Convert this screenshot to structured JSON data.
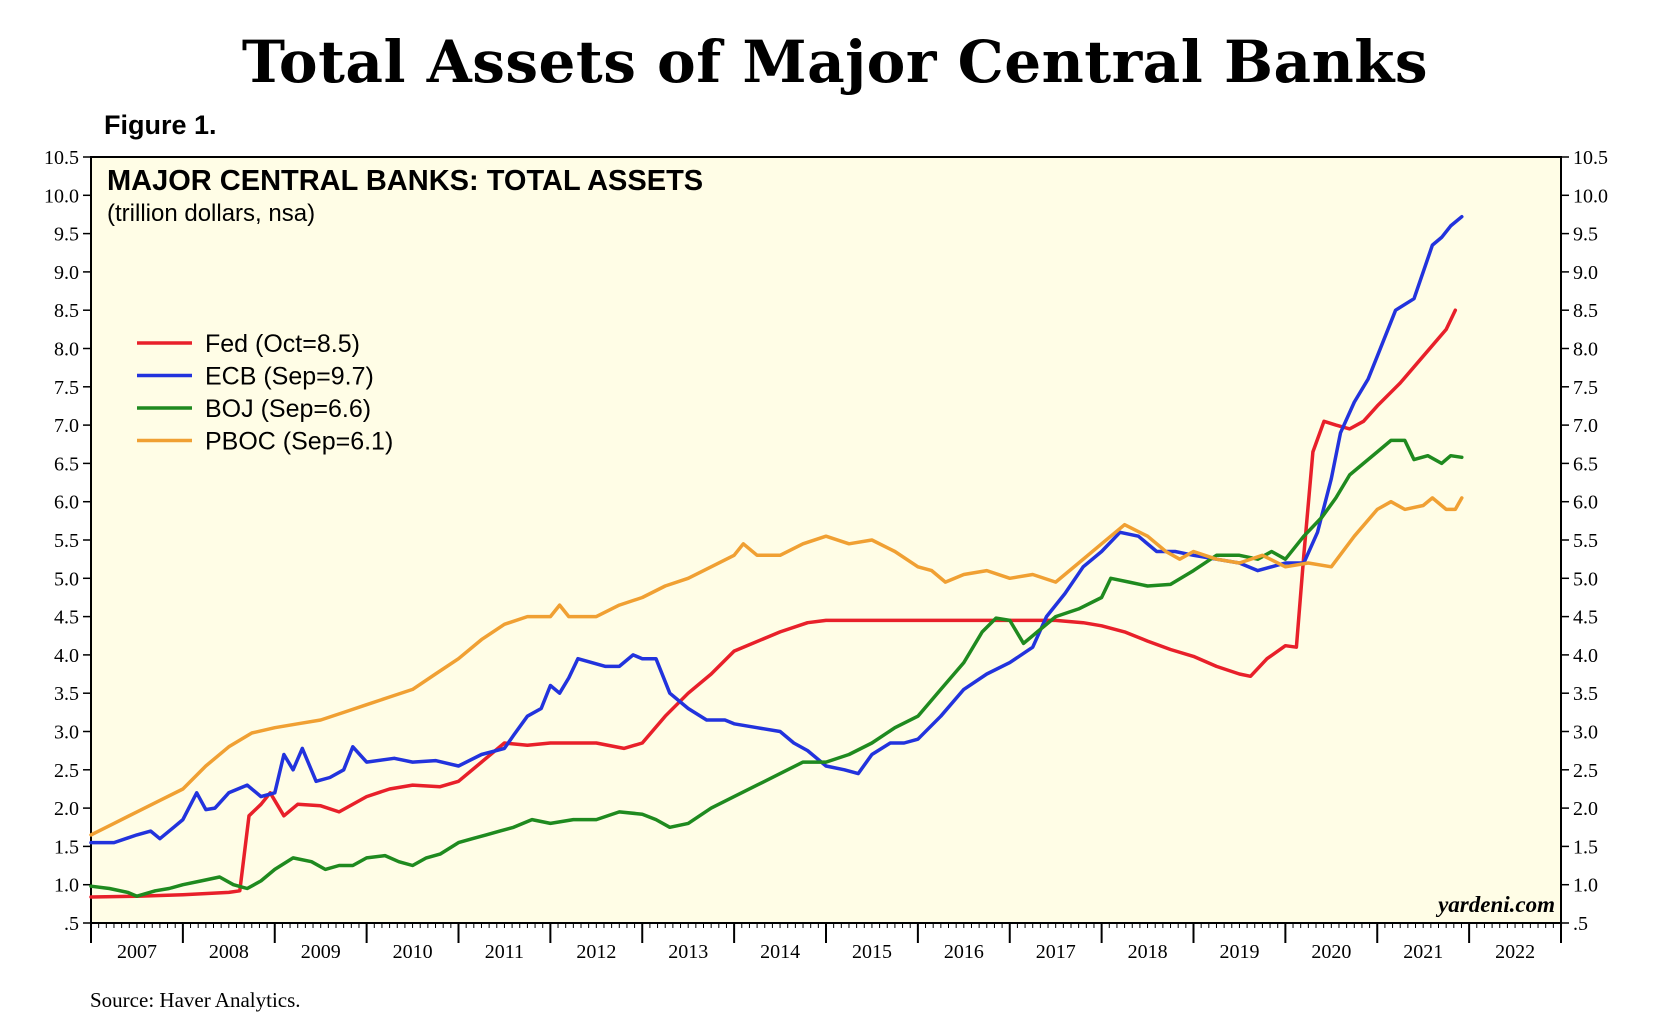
{
  "page": {
    "title": "Total Assets of Major Central Banks",
    "figure_label": "Figure 1.",
    "source": "Source: Haver Analytics."
  },
  "chart_data": {
    "type": "line",
    "title": "MAJOR CENTRAL BANKS: TOTAL ASSETS",
    "subtitle": "(trillion dollars, nsa)",
    "credit": "yardeni.com",
    "xlabel": "",
    "ylabel": "",
    "xlim": [
      2007,
      2023
    ],
    "ylim": [
      0.5,
      10.5
    ],
    "x_ticks": [
      "2007",
      "2008",
      "2009",
      "2010",
      "2011",
      "2012",
      "2013",
      "2014",
      "2015",
      "2016",
      "2017",
      "2018",
      "2019",
      "2020",
      "2021",
      "2022"
    ],
    "y_ticks": [
      ".5",
      "1.0",
      "1.5",
      "2.0",
      "2.5",
      "3.0",
      "3.5",
      "4.0",
      "4.5",
      "5.0",
      "5.5",
      "6.0",
      "6.5",
      "7.0",
      "7.5",
      "8.0",
      "8.5",
      "9.0",
      "9.5",
      "10.0",
      "10.5"
    ],
    "grid": false,
    "background": "#fffde6",
    "legend_position": "upper-left",
    "series": [
      {
        "name": "Fed (Oct=8.5)",
        "color": "#e8202a",
        "points": [
          [
            2007.0,
            0.84
          ],
          [
            2007.5,
            0.85
          ],
          [
            2008.0,
            0.87
          ],
          [
            2008.5,
            0.9
          ],
          [
            2008.62,
            0.92
          ],
          [
            2008.72,
            1.9
          ],
          [
            2008.85,
            2.05
          ],
          [
            2008.95,
            2.2
          ],
          [
            2009.1,
            1.9
          ],
          [
            2009.25,
            2.05
          ],
          [
            2009.5,
            2.03
          ],
          [
            2009.7,
            1.95
          ],
          [
            2010.0,
            2.15
          ],
          [
            2010.25,
            2.25
          ],
          [
            2010.5,
            2.3
          ],
          [
            2010.8,
            2.28
          ],
          [
            2011.0,
            2.35
          ],
          [
            2011.25,
            2.6
          ],
          [
            2011.5,
            2.85
          ],
          [
            2011.75,
            2.82
          ],
          [
            2012.0,
            2.85
          ],
          [
            2012.5,
            2.85
          ],
          [
            2012.8,
            2.78
          ],
          [
            2013.0,
            2.85
          ],
          [
            2013.25,
            3.2
          ],
          [
            2013.5,
            3.5
          ],
          [
            2013.75,
            3.75
          ],
          [
            2014.0,
            4.05
          ],
          [
            2014.5,
            4.3
          ],
          [
            2014.8,
            4.42
          ],
          [
            2015.0,
            4.45
          ],
          [
            2015.5,
            4.45
          ],
          [
            2016.0,
            4.45
          ],
          [
            2016.5,
            4.45
          ],
          [
            2017.0,
            4.45
          ],
          [
            2017.5,
            4.45
          ],
          [
            2017.8,
            4.42
          ],
          [
            2018.0,
            4.38
          ],
          [
            2018.25,
            4.3
          ],
          [
            2018.5,
            4.18
          ],
          [
            2018.75,
            4.07
          ],
          [
            2019.0,
            3.98
          ],
          [
            2019.25,
            3.85
          ],
          [
            2019.5,
            3.75
          ],
          [
            2019.62,
            3.72
          ],
          [
            2019.8,
            3.95
          ],
          [
            2020.0,
            4.12
          ],
          [
            2020.12,
            4.1
          ],
          [
            2020.2,
            5.3
          ],
          [
            2020.3,
            6.65
          ],
          [
            2020.42,
            7.05
          ],
          [
            2020.55,
            7.0
          ],
          [
            2020.7,
            6.95
          ],
          [
            2020.85,
            7.05
          ],
          [
            2021.0,
            7.25
          ],
          [
            2021.25,
            7.55
          ],
          [
            2021.5,
            7.9
          ],
          [
            2021.75,
            8.25
          ],
          [
            2021.85,
            8.5
          ]
        ]
      },
      {
        "name": "ECB (Sep=9.7)",
        "color": "#2233dd",
        "points": [
          [
            2007.0,
            1.55
          ],
          [
            2007.25,
            1.55
          ],
          [
            2007.5,
            1.65
          ],
          [
            2007.65,
            1.7
          ],
          [
            2007.75,
            1.6
          ],
          [
            2007.9,
            1.75
          ],
          [
            2008.0,
            1.85
          ],
          [
            2008.15,
            2.2
          ],
          [
            2008.25,
            1.98
          ],
          [
            2008.35,
            2.0
          ],
          [
            2008.5,
            2.2
          ],
          [
            2008.7,
            2.3
          ],
          [
            2008.85,
            2.15
          ],
          [
            2009.0,
            2.2
          ],
          [
            2009.1,
            2.7
          ],
          [
            2009.2,
            2.5
          ],
          [
            2009.3,
            2.78
          ],
          [
            2009.45,
            2.35
          ],
          [
            2009.6,
            2.4
          ],
          [
            2009.75,
            2.5
          ],
          [
            2009.85,
            2.8
          ],
          [
            2010.0,
            2.6
          ],
          [
            2010.3,
            2.65
          ],
          [
            2010.5,
            2.6
          ],
          [
            2010.75,
            2.62
          ],
          [
            2011.0,
            2.55
          ],
          [
            2011.25,
            2.7
          ],
          [
            2011.5,
            2.78
          ],
          [
            2011.6,
            2.95
          ],
          [
            2011.75,
            3.2
          ],
          [
            2011.9,
            3.3
          ],
          [
            2012.0,
            3.6
          ],
          [
            2012.1,
            3.5
          ],
          [
            2012.2,
            3.7
          ],
          [
            2012.3,
            3.95
          ],
          [
            2012.45,
            3.9
          ],
          [
            2012.6,
            3.85
          ],
          [
            2012.75,
            3.85
          ],
          [
            2012.9,
            4.0
          ],
          [
            2013.0,
            3.95
          ],
          [
            2013.15,
            3.95
          ],
          [
            2013.3,
            3.5
          ],
          [
            2013.5,
            3.3
          ],
          [
            2013.7,
            3.15
          ],
          [
            2013.9,
            3.15
          ],
          [
            2014.0,
            3.1
          ],
          [
            2014.25,
            3.05
          ],
          [
            2014.5,
            3.0
          ],
          [
            2014.65,
            2.85
          ],
          [
            2014.8,
            2.75
          ],
          [
            2015.0,
            2.55
          ],
          [
            2015.2,
            2.5
          ],
          [
            2015.35,
            2.45
          ],
          [
            2015.5,
            2.7
          ],
          [
            2015.7,
            2.85
          ],
          [
            2015.85,
            2.85
          ],
          [
            2016.0,
            2.9
          ],
          [
            2016.25,
            3.2
          ],
          [
            2016.5,
            3.55
          ],
          [
            2016.75,
            3.75
          ],
          [
            2017.0,
            3.9
          ],
          [
            2017.25,
            4.1
          ],
          [
            2017.4,
            4.5
          ],
          [
            2017.6,
            4.8
          ],
          [
            2017.8,
            5.15
          ],
          [
            2018.0,
            5.35
          ],
          [
            2018.2,
            5.6
          ],
          [
            2018.4,
            5.55
          ],
          [
            2018.6,
            5.35
          ],
          [
            2018.8,
            5.35
          ],
          [
            2019.0,
            5.3
          ],
          [
            2019.25,
            5.25
          ],
          [
            2019.5,
            5.2
          ],
          [
            2019.7,
            5.1
          ],
          [
            2019.85,
            5.15
          ],
          [
            2020.0,
            5.2
          ],
          [
            2020.2,
            5.2
          ],
          [
            2020.35,
            5.6
          ],
          [
            2020.5,
            6.3
          ],
          [
            2020.6,
            6.9
          ],
          [
            2020.75,
            7.3
          ],
          [
            2020.9,
            7.6
          ],
          [
            2021.0,
            7.9
          ],
          [
            2021.2,
            8.5
          ],
          [
            2021.4,
            8.65
          ],
          [
            2021.5,
            9.0
          ],
          [
            2021.6,
            9.35
          ],
          [
            2021.7,
            9.45
          ],
          [
            2021.8,
            9.6
          ],
          [
            2021.92,
            9.72
          ]
        ]
      },
      {
        "name": "BOJ (Sep=6.6)",
        "color": "#1f8a1f",
        "points": [
          [
            2007.0,
            0.98
          ],
          [
            2007.2,
            0.95
          ],
          [
            2007.4,
            0.9
          ],
          [
            2007.5,
            0.85
          ],
          [
            2007.7,
            0.92
          ],
          [
            2007.85,
            0.95
          ],
          [
            2008.0,
            1.0
          ],
          [
            2008.2,
            1.05
          ],
          [
            2008.4,
            1.1
          ],
          [
            2008.55,
            1.0
          ],
          [
            2008.7,
            0.95
          ],
          [
            2008.85,
            1.05
          ],
          [
            2009.0,
            1.2
          ],
          [
            2009.2,
            1.35
          ],
          [
            2009.4,
            1.3
          ],
          [
            2009.55,
            1.2
          ],
          [
            2009.7,
            1.25
          ],
          [
            2009.85,
            1.25
          ],
          [
            2010.0,
            1.35
          ],
          [
            2010.2,
            1.38
          ],
          [
            2010.35,
            1.3
          ],
          [
            2010.5,
            1.25
          ],
          [
            2010.65,
            1.35
          ],
          [
            2010.8,
            1.4
          ],
          [
            2011.0,
            1.55
          ],
          [
            2011.15,
            1.6
          ],
          [
            2011.3,
            1.65
          ],
          [
            2011.45,
            1.7
          ],
          [
            2011.6,
            1.75
          ],
          [
            2011.8,
            1.85
          ],
          [
            2012.0,
            1.8
          ],
          [
            2012.25,
            1.85
          ],
          [
            2012.5,
            1.85
          ],
          [
            2012.75,
            1.95
          ],
          [
            2013.0,
            1.92
          ],
          [
            2013.15,
            1.85
          ],
          [
            2013.3,
            1.75
          ],
          [
            2013.5,
            1.8
          ],
          [
            2013.75,
            2.0
          ],
          [
            2014.0,
            2.15
          ],
          [
            2014.25,
            2.3
          ],
          [
            2014.5,
            2.45
          ],
          [
            2014.75,
            2.6
          ],
          [
            2015.0,
            2.6
          ],
          [
            2015.25,
            2.7
          ],
          [
            2015.5,
            2.85
          ],
          [
            2015.75,
            3.05
          ],
          [
            2016.0,
            3.2
          ],
          [
            2016.25,
            3.55
          ],
          [
            2016.5,
            3.9
          ],
          [
            2016.7,
            4.3
          ],
          [
            2016.85,
            4.48
          ],
          [
            2017.0,
            4.45
          ],
          [
            2017.15,
            4.15
          ],
          [
            2017.3,
            4.3
          ],
          [
            2017.5,
            4.5
          ],
          [
            2017.75,
            4.6
          ],
          [
            2018.0,
            4.75
          ],
          [
            2018.1,
            5.0
          ],
          [
            2018.3,
            4.95
          ],
          [
            2018.5,
            4.9
          ],
          [
            2018.75,
            4.92
          ],
          [
            2019.0,
            5.1
          ],
          [
            2019.25,
            5.3
          ],
          [
            2019.5,
            5.3
          ],
          [
            2019.7,
            5.25
          ],
          [
            2019.85,
            5.35
          ],
          [
            2020.0,
            5.25
          ],
          [
            2020.2,
            5.55
          ],
          [
            2020.4,
            5.8
          ],
          [
            2020.55,
            6.05
          ],
          [
            2020.7,
            6.35
          ],
          [
            2020.85,
            6.5
          ],
          [
            2021.0,
            6.65
          ],
          [
            2021.15,
            6.8
          ],
          [
            2021.3,
            6.8
          ],
          [
            2021.4,
            6.55
          ],
          [
            2021.55,
            6.6
          ],
          [
            2021.7,
            6.5
          ],
          [
            2021.8,
            6.6
          ],
          [
            2021.92,
            6.58
          ]
        ]
      },
      {
        "name": "PBOC (Sep=6.1)",
        "color": "#f0a033",
        "points": [
          [
            2007.0,
            1.65
          ],
          [
            2007.25,
            1.8
          ],
          [
            2007.5,
            1.95
          ],
          [
            2007.75,
            2.1
          ],
          [
            2008.0,
            2.25
          ],
          [
            2008.25,
            2.55
          ],
          [
            2008.5,
            2.8
          ],
          [
            2008.75,
            2.98
          ],
          [
            2009.0,
            3.05
          ],
          [
            2009.25,
            3.1
          ],
          [
            2009.5,
            3.15
          ],
          [
            2009.75,
            3.25
          ],
          [
            2010.0,
            3.35
          ],
          [
            2010.25,
            3.45
          ],
          [
            2010.5,
            3.55
          ],
          [
            2010.75,
            3.75
          ],
          [
            2011.0,
            3.95
          ],
          [
            2011.25,
            4.2
          ],
          [
            2011.5,
            4.4
          ],
          [
            2011.75,
            4.5
          ],
          [
            2012.0,
            4.5
          ],
          [
            2012.1,
            4.65
          ],
          [
            2012.2,
            4.5
          ],
          [
            2012.5,
            4.5
          ],
          [
            2012.75,
            4.65
          ],
          [
            2013.0,
            4.75
          ],
          [
            2013.25,
            4.9
          ],
          [
            2013.5,
            5.0
          ],
          [
            2013.75,
            5.15
          ],
          [
            2014.0,
            5.3
          ],
          [
            2014.1,
            5.45
          ],
          [
            2014.25,
            5.3
          ],
          [
            2014.5,
            5.3
          ],
          [
            2014.75,
            5.45
          ],
          [
            2015.0,
            5.55
          ],
          [
            2015.25,
            5.45
          ],
          [
            2015.5,
            5.5
          ],
          [
            2015.75,
            5.35
          ],
          [
            2016.0,
            5.15
          ],
          [
            2016.15,
            5.1
          ],
          [
            2016.3,
            4.95
          ],
          [
            2016.5,
            5.05
          ],
          [
            2016.75,
            5.1
          ],
          [
            2017.0,
            5.0
          ],
          [
            2017.25,
            5.05
          ],
          [
            2017.5,
            4.95
          ],
          [
            2017.75,
            5.2
          ],
          [
            2018.0,
            5.45
          ],
          [
            2018.25,
            5.7
          ],
          [
            2018.5,
            5.55
          ],
          [
            2018.7,
            5.35
          ],
          [
            2018.85,
            5.25
          ],
          [
            2019.0,
            5.35
          ],
          [
            2019.25,
            5.25
          ],
          [
            2019.5,
            5.2
          ],
          [
            2019.75,
            5.3
          ],
          [
            2020.0,
            5.15
          ],
          [
            2020.25,
            5.2
          ],
          [
            2020.5,
            5.15
          ],
          [
            2020.75,
            5.55
          ],
          [
            2021.0,
            5.9
          ],
          [
            2021.15,
            6.0
          ],
          [
            2021.3,
            5.9
          ],
          [
            2021.5,
            5.95
          ],
          [
            2021.6,
            6.05
          ],
          [
            2021.75,
            5.9
          ],
          [
            2021.85,
            5.9
          ],
          [
            2021.92,
            6.05
          ]
        ]
      }
    ]
  }
}
